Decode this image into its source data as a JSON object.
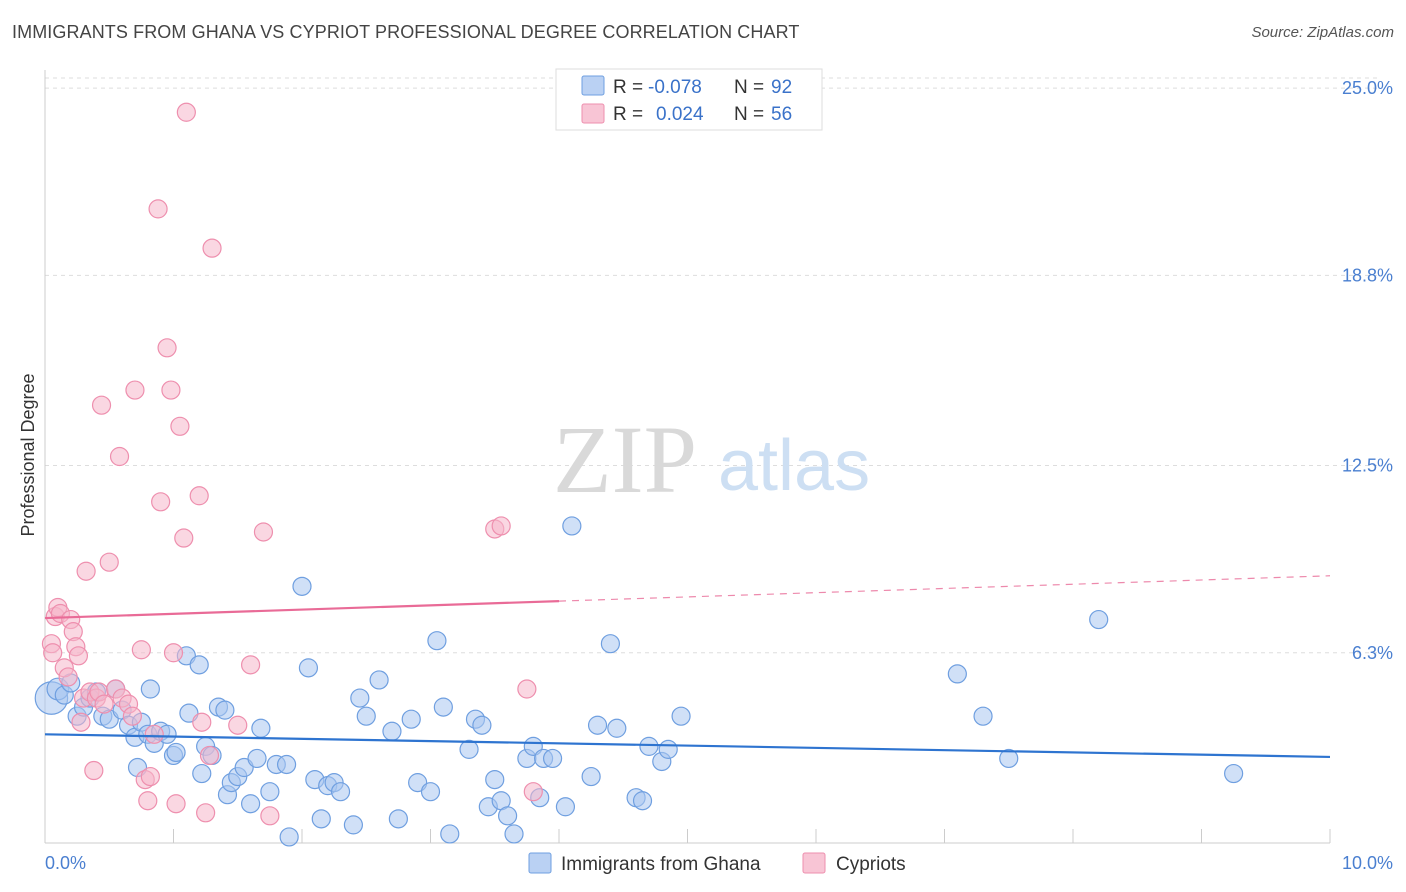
{
  "title": "IMMIGRANTS FROM GHANA VS CYPRIOT PROFESSIONAL DEGREE CORRELATION CHART",
  "source": "Source: ZipAtlas.com",
  "watermark": {
    "part1": "ZIP",
    "part2": "atlas"
  },
  "legend_box": {
    "rows": [
      {
        "r_label": "R =",
        "r_value": "-0.078",
        "n_label": "N =",
        "n_value": "92"
      },
      {
        "r_label": "R =",
        "r_value": "0.024",
        "n_label": "N =",
        "n_value": "56"
      }
    ]
  },
  "colors": {
    "blue_fill": "#a9c6f0",
    "blue_stroke": "#6f9fe0",
    "blue_line": "#2e74d0",
    "pink_fill": "#f6b6ca",
    "pink_stroke": "#ee8fae",
    "pink_line": "#e96b97",
    "grid": "#dddddd",
    "tick_text": "#4a7fd0"
  },
  "chart_data": {
    "type": "scatter",
    "title": "IMMIGRANTS FROM GHANA VS CYPRIOT PROFESSIONAL DEGREE CORRELATION CHART",
    "xlabel": "",
    "ylabel": "Professional Degree",
    "xlim": [
      0,
      10
    ],
    "ylim": [
      0,
      25.6
    ],
    "x_tick_labels": [
      "0.0%",
      "10.0%"
    ],
    "y_ticks": [
      6.3,
      12.5,
      18.8,
      25.0
    ],
    "y_tick_labels": [
      "6.3%",
      "12.5%",
      "18.8%",
      "25.0%"
    ],
    "legend_position": "bottom-center",
    "series": [
      {
        "name": "Immigrants from Ghana",
        "color": "#a9c6f0",
        "r": -0.078,
        "n": 92,
        "trend": {
          "x0": 0,
          "y0": 3.6,
          "x1": 10,
          "y1": 2.85,
          "dashed_from": 10
        },
        "points": [
          [
            0.05,
            4.8,
            1.8
          ],
          [
            0.1,
            5.1,
            1.2
          ],
          [
            0.15,
            4.9,
            1
          ],
          [
            0.2,
            5.3,
            1
          ],
          [
            0.25,
            4.2,
            1
          ],
          [
            0.3,
            4.5,
            1
          ],
          [
            0.35,
            4.8,
            1
          ],
          [
            0.4,
            5.0,
            1
          ],
          [
            0.45,
            4.2,
            1
          ],
          [
            0.5,
            4.1,
            1
          ],
          [
            0.55,
            5.1,
            1
          ],
          [
            0.6,
            4.4,
            1
          ],
          [
            0.65,
            3.9,
            1
          ],
          [
            0.7,
            3.5,
            1
          ],
          [
            0.72,
            2.5,
            1
          ],
          [
            0.75,
            4.0,
            1
          ],
          [
            0.8,
            3.6,
            1
          ],
          [
            0.82,
            5.1,
            1
          ],
          [
            0.85,
            3.3,
            1
          ],
          [
            0.9,
            3.7,
            1
          ],
          [
            0.95,
            3.6,
            1
          ],
          [
            1.0,
            2.9,
            1
          ],
          [
            1.02,
            3.0,
            1
          ],
          [
            1.1,
            6.2,
            1
          ],
          [
            1.12,
            4.3,
            1
          ],
          [
            1.2,
            5.9,
            1
          ],
          [
            1.22,
            2.3,
            1
          ],
          [
            1.25,
            3.2,
            1
          ],
          [
            1.3,
            2.9,
            1
          ],
          [
            1.35,
            4.5,
            1
          ],
          [
            1.4,
            4.4,
            1
          ],
          [
            1.42,
            1.6,
            1
          ],
          [
            1.45,
            2.0,
            1
          ],
          [
            1.5,
            2.2,
            1
          ],
          [
            1.55,
            2.5,
            1
          ],
          [
            1.6,
            1.3,
            1
          ],
          [
            1.65,
            2.8,
            1
          ],
          [
            1.68,
            3.8,
            1
          ],
          [
            1.75,
            1.7,
            1
          ],
          [
            1.8,
            2.6,
            1
          ],
          [
            1.9,
            0.2,
            1
          ],
          [
            1.88,
            2.6,
            1
          ],
          [
            2.0,
            8.5,
            1
          ],
          [
            2.05,
            5.8,
            1
          ],
          [
            2.1,
            2.1,
            1
          ],
          [
            2.15,
            0.8,
            1
          ],
          [
            2.2,
            1.9,
            1
          ],
          [
            2.25,
            2.0,
            1
          ],
          [
            2.3,
            1.7,
            1
          ],
          [
            2.4,
            0.6,
            1
          ],
          [
            2.45,
            4.8,
            1
          ],
          [
            2.5,
            4.2,
            1
          ],
          [
            2.6,
            5.4,
            1
          ],
          [
            2.7,
            3.7,
            1
          ],
          [
            2.75,
            0.8,
            1
          ],
          [
            2.85,
            4.1,
            1
          ],
          [
            2.9,
            2.0,
            1
          ],
          [
            3.0,
            1.7,
            1
          ],
          [
            3.05,
            6.7,
            1
          ],
          [
            3.1,
            4.5,
            1
          ],
          [
            3.15,
            0.3,
            1
          ],
          [
            3.3,
            3.1,
            1
          ],
          [
            3.35,
            4.1,
            1
          ],
          [
            3.4,
            3.9,
            1
          ],
          [
            3.45,
            1.2,
            1
          ],
          [
            3.5,
            2.1,
            1
          ],
          [
            3.55,
            1.4,
            1
          ],
          [
            3.6,
            0.9,
            1
          ],
          [
            3.65,
            0.3,
            1
          ],
          [
            3.75,
            2.8,
            1
          ],
          [
            3.8,
            3.2,
            1
          ],
          [
            3.85,
            1.5,
            1
          ],
          [
            3.88,
            2.8,
            1
          ],
          [
            3.95,
            2.8,
            1
          ],
          [
            4.05,
            1.2,
            1
          ],
          [
            4.1,
            10.5,
            1
          ],
          [
            4.25,
            2.2,
            1
          ],
          [
            4.3,
            3.9,
            1
          ],
          [
            4.4,
            6.6,
            1
          ],
          [
            4.45,
            3.8,
            1
          ],
          [
            4.6,
            1.5,
            1
          ],
          [
            4.65,
            1.4,
            1
          ],
          [
            4.7,
            3.2,
            1
          ],
          [
            4.8,
            2.7,
            1
          ],
          [
            4.85,
            3.1,
            1
          ],
          [
            4.95,
            4.2,
            1
          ],
          [
            7.1,
            5.6,
            1
          ],
          [
            7.3,
            4.2,
            1
          ],
          [
            7.5,
            2.8,
            1
          ],
          [
            8.2,
            7.4,
            1
          ],
          [
            9.25,
            2.3,
            1
          ]
        ]
      },
      {
        "name": "Cypriots",
        "color": "#f6b6ca",
        "r": 0.024,
        "n": 56,
        "trend": {
          "x0": 0,
          "y0": 7.45,
          "x1": 10,
          "y1": 8.85,
          "dashed_from": 4.0
        },
        "points": [
          [
            0.05,
            6.6,
            1
          ],
          [
            0.06,
            6.3,
            1
          ],
          [
            0.08,
            7.5,
            1
          ],
          [
            0.1,
            7.8,
            1
          ],
          [
            0.12,
            7.6,
            1
          ],
          [
            0.15,
            5.8,
            1
          ],
          [
            0.18,
            5.5,
            1
          ],
          [
            0.2,
            7.4,
            1
          ],
          [
            0.22,
            7.0,
            1
          ],
          [
            0.24,
            6.5,
            1
          ],
          [
            0.26,
            6.2,
            1
          ],
          [
            0.28,
            4.0,
            1
          ],
          [
            0.3,
            4.8,
            1
          ],
          [
            0.32,
            9.0,
            1
          ],
          [
            0.35,
            5.0,
            1
          ],
          [
            0.38,
            2.4,
            1
          ],
          [
            0.4,
            4.8,
            1
          ],
          [
            0.42,
            5.0,
            1
          ],
          [
            0.44,
            14.5,
            1
          ],
          [
            0.46,
            4.6,
            1
          ],
          [
            0.5,
            9.3,
            1
          ],
          [
            0.55,
            5.1,
            1
          ],
          [
            0.58,
            12.8,
            1
          ],
          [
            0.6,
            4.8,
            1
          ],
          [
            0.65,
            4.6,
            1
          ],
          [
            0.68,
            4.2,
            1
          ],
          [
            0.7,
            15.0,
            1
          ],
          [
            0.75,
            6.4,
            1
          ],
          [
            0.78,
            2.1,
            1
          ],
          [
            0.8,
            1.4,
            1
          ],
          [
            0.82,
            2.2,
            1
          ],
          [
            0.85,
            3.6,
            1
          ],
          [
            0.88,
            21.0,
            1
          ],
          [
            0.9,
            11.3,
            1
          ],
          [
            0.95,
            16.4,
            1
          ],
          [
            0.98,
            15.0,
            1
          ],
          [
            1.0,
            6.3,
            1
          ],
          [
            1.02,
            1.3,
            1
          ],
          [
            1.05,
            13.8,
            1
          ],
          [
            1.08,
            10.1,
            1
          ],
          [
            1.1,
            24.2,
            1
          ],
          [
            1.2,
            11.5,
            1
          ],
          [
            1.22,
            4.0,
            1
          ],
          [
            1.25,
            1.0,
            1
          ],
          [
            1.28,
            2.9,
            1
          ],
          [
            1.3,
            19.7,
            1
          ],
          [
            1.5,
            3.9,
            1
          ],
          [
            1.6,
            5.9,
            1
          ],
          [
            1.7,
            10.3,
            1
          ],
          [
            1.75,
            0.9,
            1
          ],
          [
            3.5,
            10.4,
            1
          ],
          [
            3.55,
            10.5,
            1
          ],
          [
            3.75,
            5.1,
            1
          ],
          [
            3.8,
            1.7,
            1
          ]
        ]
      }
    ]
  },
  "bottom_legend": [
    {
      "label": "Immigrants from Ghana"
    },
    {
      "label": "Cypriots"
    }
  ]
}
